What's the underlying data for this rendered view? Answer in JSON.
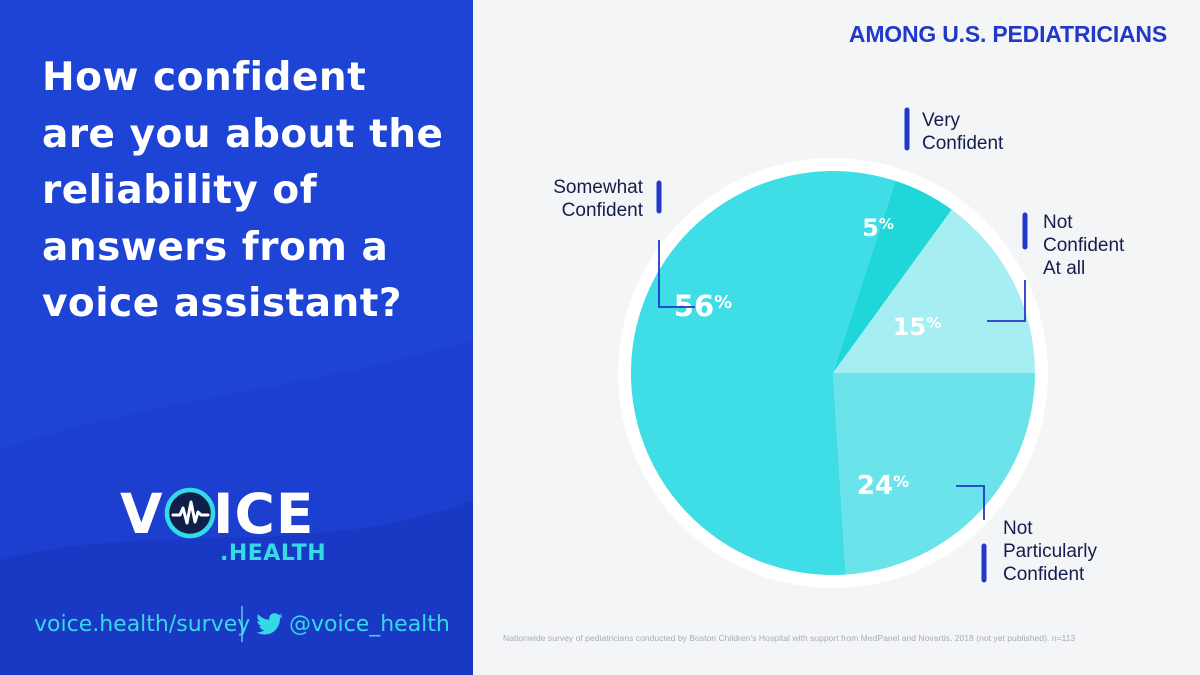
{
  "question": "How confident are you about the reliability of answers from a voice assistant?",
  "subtitle": "AMONG U.S. PEDIATRICIANS",
  "logo": {
    "v": "V",
    "rest": "ICE",
    "suffix": ".HEALTH"
  },
  "footer": {
    "url": "voice.health/survey",
    "handle": "@voice_health"
  },
  "footnote": "Nationwide survey of pediatricians conducted by Boston Children’s Hospital with support from MedPanel and Novartis, 2018 (not yet published). n=113",
  "colors": {
    "panel": "#1c3fcf",
    "accent": "#2238c9",
    "cyan": "#34dbe6",
    "slice_very": "#1fd6d9",
    "slice_not": "#a6eef2",
    "slice_notpart": "#6be3ea",
    "slice_somewhat": "#3fdde6"
  },
  "chart_data": {
    "type": "pie",
    "title": "AMONG U.S. PEDIATRICIANS",
    "unit": "%",
    "slices": [
      {
        "key": "very",
        "label": [
          "Very",
          "Confident"
        ],
        "value": 5
      },
      {
        "key": "not",
        "label": [
          "Not",
          "Confident",
          "At all"
        ],
        "value": 15
      },
      {
        "key": "notpart",
        "label": [
          "Not",
          "Particularly",
          "Confident"
        ],
        "value": 24
      },
      {
        "key": "somewhat",
        "label": [
          "Somewhat",
          "Confident"
        ],
        "value": 56
      }
    ]
  }
}
